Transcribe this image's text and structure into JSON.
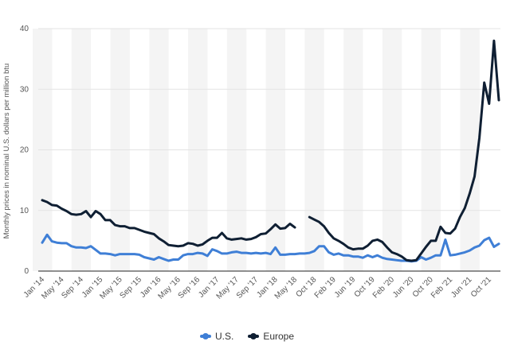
{
  "chart_data": {
    "type": "line",
    "title": "",
    "xlabel": "",
    "ylabel": "Monthly prices in nominal U.S. dollars per million btu",
    "ylim": [
      0,
      40
    ],
    "yticks": [
      0,
      10,
      20,
      30,
      40
    ],
    "grid": true,
    "legend_placement": "bottom",
    "x_tick_labels": [
      "Jan '14",
      "May '14",
      "Sep '14",
      "Jan '15",
      "May '15",
      "Sep '15",
      "Jan '16",
      "May '16",
      "Sep '16",
      "Jan '17",
      "May '17",
      "Sep '17",
      "Jan '18",
      "May '18",
      "Oct '18",
      "Feb '19",
      "Jun '19",
      "Oct '19",
      "Feb '20",
      "Jun '20",
      "Oct '20",
      "Feb '21",
      "Jun '21",
      "Oct '21"
    ],
    "categories": [
      "Jan '14",
      "Feb '14",
      "Mar '14",
      "Apr '14",
      "May '14",
      "Jun '14",
      "Jul '14",
      "Aug '14",
      "Sep '14",
      "Oct '14",
      "Nov '14",
      "Dec '14",
      "Jan '15",
      "Feb '15",
      "Mar '15",
      "Apr '15",
      "May '15",
      "Jun '15",
      "Jul '15",
      "Aug '15",
      "Sep '15",
      "Oct '15",
      "Nov '15",
      "Dec '15",
      "Jan '16",
      "Feb '16",
      "Mar '16",
      "Apr '16",
      "May '16",
      "Jun '16",
      "Jul '16",
      "Aug '16",
      "Sep '16",
      "Oct '16",
      "Nov '16",
      "Dec '16",
      "Jan '17",
      "Feb '17",
      "Mar '17",
      "Apr '17",
      "May '17",
      "Jun '17",
      "Jul '17",
      "Aug '17",
      "Sep '17",
      "Oct '17",
      "Nov '17",
      "Dec '17",
      "Jan '18",
      "Feb '18",
      "Mar '18",
      "Apr '18",
      "May '18",
      "Jun '18",
      "Aug '18",
      "Sep '18",
      "Oct '18",
      "Nov '18",
      "Dec '18",
      "Jan '19",
      "Feb '19",
      "Mar '19",
      "Apr '19",
      "May '19",
      "Jun '19",
      "Jul '19",
      "Aug '19",
      "Sep '19",
      "Oct '19",
      "Nov '19",
      "Dec '19",
      "Jan '20",
      "Feb '20",
      "Mar '20",
      "Apr '20",
      "May '20",
      "Jun '20",
      "Jul '20",
      "Aug '20",
      "Sep '20",
      "Oct '20",
      "Nov '20",
      "Dec '20",
      "Jan '21",
      "Feb '21",
      "Mar '21",
      "Apr '21",
      "May '21",
      "Jun '21",
      "Jul '21",
      "Aug '21",
      "Sep '21",
      "Oct '21",
      "Nov '21",
      "Dec '21"
    ],
    "series": [
      {
        "name": "U.S.",
        "color": "#3f7fd6",
        "values": [
          4.7,
          6.0,
          4.9,
          4.7,
          4.6,
          4.6,
          4.1,
          3.9,
          3.9,
          3.8,
          4.1,
          3.5,
          2.9,
          2.9,
          2.8,
          2.6,
          2.8,
          2.8,
          2.8,
          2.8,
          2.7,
          2.3,
          2.1,
          1.9,
          2.3,
          2.0,
          1.7,
          1.9,
          1.9,
          2.6,
          2.8,
          2.8,
          3.0,
          2.9,
          2.5,
          3.6,
          3.3,
          2.9,
          2.9,
          3.1,
          3.2,
          3.0,
          3.0,
          2.9,
          3.0,
          2.9,
          3.0,
          2.8,
          3.9,
          2.7,
          2.7,
          2.8,
          2.8,
          2.9,
          2.9,
          3.0,
          3.3,
          4.1,
          4.1,
          3.1,
          2.7,
          2.9,
          2.6,
          2.6,
          2.4,
          2.4,
          2.2,
          2.6,
          2.3,
          2.6,
          2.2,
          2.0,
          1.9,
          1.8,
          1.7,
          1.7,
          1.6,
          1.7,
          2.3,
          1.9,
          2.2,
          2.6,
          2.6,
          5.2,
          2.6,
          2.7,
          2.9,
          3.1,
          3.4,
          3.9,
          4.2,
          5.1,
          5.5,
          4.0,
          4.5
        ]
      },
      {
        "name": "Europe",
        "color": "#0f1f33",
        "values": [
          11.7,
          11.4,
          10.9,
          10.8,
          10.3,
          9.9,
          9.4,
          9.3,
          9.4,
          9.9,
          8.9,
          9.9,
          9.4,
          8.4,
          8.4,
          7.6,
          7.4,
          7.4,
          7.1,
          7.1,
          6.8,
          6.5,
          6.3,
          6.1,
          5.4,
          4.9,
          4.3,
          4.2,
          4.1,
          4.2,
          4.6,
          4.5,
          4.2,
          4.4,
          5.0,
          5.5,
          5.5,
          6.3,
          5.4,
          5.2,
          5.3,
          5.4,
          5.2,
          5.3,
          5.6,
          6.1,
          6.2,
          6.9,
          7.7,
          7.0,
          7.1,
          7.8,
          7.2,
          null,
          null,
          8.9,
          8.5,
          8.1,
          7.4,
          6.3,
          5.4,
          5.0,
          4.5,
          3.9,
          3.6,
          3.7,
          3.7,
          4.2,
          5.0,
          5.2,
          4.8,
          3.9,
          3.1,
          2.8,
          2.4,
          1.8,
          1.7,
          1.8,
          2.9,
          4.0,
          5.0,
          5.0,
          7.3,
          6.3,
          6.2,
          7.0,
          8.9,
          10.4,
          12.8,
          15.6,
          22.0,
          31.1,
          27.6,
          38.0,
          28.2
        ]
      }
    ]
  },
  "legend": {
    "us": "U.S.",
    "europe": "Europe"
  }
}
